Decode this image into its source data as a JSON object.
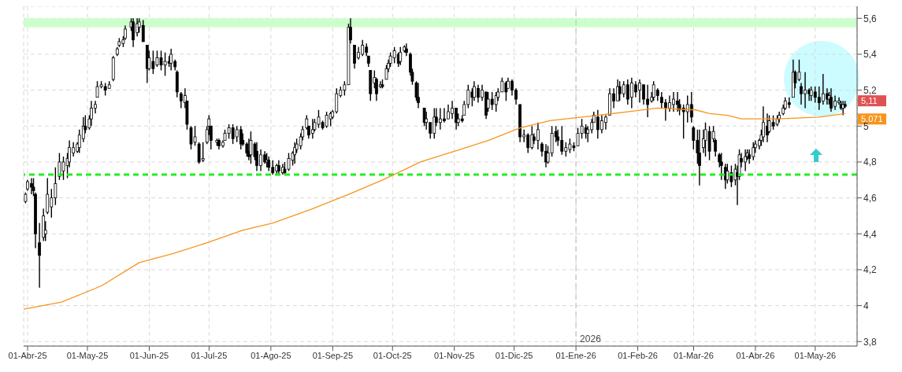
{
  "chart_data": {
    "type": "candlestick",
    "color": "#000000",
    "x": [
      "2025-03-31",
      "2025-04-01",
      "2025-04-03",
      "2025-04-04",
      "2025-04-05",
      "2025-04-07",
      "2025-04-09",
      "2025-04-10",
      "2025-04-11",
      "2025-04-13",
      "2025-04-15",
      "2025-04-17",
      "2025-04-19",
      "2025-04-21",
      "2025-04-22",
      "2025-04-24",
      "2025-04-26",
      "2025-04-27",
      "2025-04-29",
      "2025-04-30",
      "2025-05-02",
      "2025-05-03",
      "2025-05-05",
      "2025-05-06",
      "2025-05-08",
      "2025-05-10",
      "2025-05-12",
      "2025-05-14",
      "2025-05-16",
      "2025-05-17",
      "2025-05-19",
      "2025-05-20",
      "2025-05-23",
      "2025-05-24",
      "2025-05-26",
      "2025-05-27",
      "2025-05-29",
      "2025-05-31",
      "2025-06-01",
      "2025-06-03",
      "2025-06-05",
      "2025-06-07",
      "2025-06-09",
      "2025-06-11",
      "2025-06-12",
      "2025-06-14",
      "2025-06-15",
      "2025-06-17",
      "2025-06-19",
      "2025-06-20",
      "2025-06-22",
      "2025-06-24",
      "2025-06-26",
      "2025-06-28",
      "2025-06-30",
      "2025-07-01",
      "2025-07-02",
      "2025-07-05",
      "2025-07-06",
      "2025-07-08",
      "2025-07-09",
      "2025-07-11",
      "2025-07-13",
      "2025-07-15",
      "2025-07-17",
      "2025-07-18",
      "2025-07-20",
      "2025-07-21",
      "2025-07-22",
      "2025-07-24",
      "2025-07-25",
      "2025-07-27",
      "2025-07-29",
      "2025-07-30",
      "2025-07-31",
      "2025-08-02",
      "2025-08-04",
      "2025-08-05",
      "2025-08-07",
      "2025-08-08",
      "2025-08-10",
      "2025-08-12",
      "2025-08-13",
      "2025-08-14",
      "2025-08-16",
      "2025-08-17",
      "2025-08-19",
      "2025-08-20",
      "2025-08-22",
      "2025-08-23",
      "2025-08-25",
      "2025-08-27",
      "2025-08-29",
      "2025-08-31",
      "2025-09-01",
      "2025-09-03",
      "2025-09-05",
      "2025-09-07",
      "2025-09-09",
      "2025-09-10",
      "2025-09-12",
      "2025-09-14",
      "2025-09-16",
      "2025-09-18",
      "2025-09-19",
      "2025-09-20",
      "2025-09-22",
      "2025-09-23",
      "2025-09-25",
      "2025-09-26",
      "2025-09-28",
      "2025-09-29",
      "2025-09-30",
      "2025-10-02",
      "2025-10-04",
      "2025-10-05",
      "2025-10-07",
      "2025-10-08",
      "2025-10-10",
      "2025-10-11",
      "2025-10-13",
      "2025-10-14",
      "2025-10-17",
      "2025-10-18",
      "2025-10-20",
      "2025-10-22",
      "2025-10-23",
      "2025-10-25",
      "2025-10-27",
      "2025-10-29",
      "2025-10-31",
      "2025-11-02",
      "2025-11-03",
      "2025-11-05",
      "2025-11-06",
      "2025-11-08",
      "2025-11-10",
      "2025-11-11",
      "2025-11-13",
      "2025-11-15",
      "2025-11-17",
      "2025-11-18",
      "2025-11-20",
      "2025-11-22",
      "2025-11-23",
      "2025-11-25",
      "2025-11-27",
      "2025-11-28",
      "2025-11-30",
      "2025-12-02",
      "2025-12-04",
      "2025-12-06",
      "2025-12-08",
      "2025-12-10",
      "2025-12-11",
      "2025-12-13",
      "2025-12-15",
      "2025-12-17",
      "2025-12-18",
      "2025-12-20",
      "2025-12-22",
      "2025-12-23",
      "2025-12-25",
      "2025-12-27",
      "2025-12-29",
      "2025-12-31",
      "2026-01-02",
      "2026-01-04",
      "2026-01-06",
      "2026-01-07",
      "2026-01-09",
      "2026-01-10",
      "2026-01-12",
      "2026-01-14",
      "2026-01-16",
      "2026-01-18",
      "2026-01-20",
      "2026-01-22",
      "2026-01-23",
      "2026-01-25",
      "2026-01-27",
      "2026-01-29",
      "2026-01-31",
      "2026-02-02",
      "2026-02-04",
      "2026-02-06",
      "2026-02-08",
      "2026-02-09",
      "2026-02-11",
      "2026-02-13",
      "2026-02-15",
      "2026-02-17",
      "2026-02-19",
      "2026-02-21",
      "2026-02-22",
      "2026-02-24",
      "2026-02-26",
      "2026-02-28",
      "2026-03-01",
      "2026-03-03",
      "2026-03-04",
      "2026-03-06",
      "2026-03-07",
      "2026-03-09",
      "2026-03-11",
      "2026-03-12",
      "2026-03-14",
      "2026-03-15",
      "2026-03-17",
      "2026-03-18",
      "2026-03-20",
      "2026-03-22",
      "2026-03-23",
      "2026-03-24",
      "2026-03-25",
      "2026-03-27",
      "2026-03-28",
      "2026-03-29",
      "2026-03-31",
      "2026-04-01",
      "2026-04-03",
      "2026-04-04",
      "2026-04-05",
      "2026-04-07",
      "2026-04-08",
      "2026-04-10",
      "2026-04-12",
      "2026-04-13",
      "2026-04-15",
      "2026-04-16",
      "2026-04-18",
      "2026-04-20",
      "2026-04-21",
      "2026-04-23",
      "2026-04-24",
      "2026-04-26",
      "2026-04-28",
      "2026-04-29",
      "2026-05-01",
      "2026-05-03",
      "2026-05-05",
      "2026-05-07",
      "2026-05-08",
      "2026-05-09",
      "2026-05-11",
      "2026-05-13",
      "2026-05-14",
      "2026-05-15",
      "2026-05-16"
    ],
    "ohlc": [
      [
        4.58,
        4.63,
        4.57,
        4.62
      ],
      [
        4.65,
        4.7,
        4.64,
        4.69
      ],
      [
        4.68,
        4.71,
        4.62,
        4.66
      ],
      [
        4.66,
        4.71,
        4.61,
        4.64
      ],
      [
        4.62,
        4.63,
        4.32,
        4.4
      ],
      [
        4.35,
        4.46,
        4.1,
        4.28
      ],
      [
        4.38,
        4.54,
        4.36,
        4.5
      ],
      [
        4.4,
        4.47,
        4.36,
        4.42
      ],
      [
        4.52,
        4.71,
        4.51,
        4.62
      ],
      [
        4.55,
        4.65,
        4.49,
        4.6
      ],
      [
        4.6,
        4.77,
        4.56,
        4.68
      ],
      [
        4.72,
        4.85,
        4.7,
        4.8
      ],
      [
        4.75,
        4.83,
        4.7,
        4.8
      ],
      [
        4.78,
        4.85,
        4.71,
        4.82
      ],
      [
        4.8,
        4.92,
        4.77,
        4.88
      ],
      [
        4.85,
        4.91,
        4.83,
        4.88
      ],
      [
        4.86,
        4.91,
        4.85,
        4.9
      ],
      [
        4.88,
        4.98,
        4.85,
        4.95
      ],
      [
        4.93,
        5.05,
        4.91,
        5.0
      ],
      [
        5.0,
        5.06,
        4.96,
        4.98
      ],
      [
        4.99,
        5.06,
        4.98,
        5.04
      ],
      [
        5.04,
        5.14,
        5.0,
        5.1
      ],
      [
        5.1,
        5.14,
        5.07,
        5.12
      ],
      [
        5.16,
        5.25,
        5.16,
        5.22
      ],
      [
        5.22,
        5.25,
        5.21,
        5.23
      ],
      [
        5.22,
        5.24,
        5.17,
        5.2
      ],
      [
        5.21,
        5.25,
        5.21,
        5.23
      ],
      [
        5.26,
        5.39,
        5.25,
        5.38
      ],
      [
        5.4,
        5.44,
        5.39,
        5.43
      ],
      [
        5.45,
        5.49,
        5.44,
        5.47
      ],
      [
        5.46,
        5.5,
        5.44,
        5.48
      ],
      [
        5.49,
        5.56,
        5.48,
        5.54
      ],
      [
        5.55,
        5.6,
        5.53,
        5.58
      ],
      [
        5.58,
        5.6,
        5.44,
        5.48
      ],
      [
        5.52,
        5.6,
        5.5,
        5.57
      ],
      [
        5.55,
        5.6,
        5.52,
        5.58
      ],
      [
        5.56,
        5.59,
        5.47,
        5.47
      ],
      [
        5.45,
        5.45,
        5.24,
        5.32
      ],
      [
        5.32,
        5.42,
        5.31,
        5.38
      ],
      [
        5.36,
        5.42,
        5.29,
        5.32
      ],
      [
        5.34,
        5.42,
        5.33,
        5.38
      ],
      [
        5.38,
        5.42,
        5.31,
        5.34
      ],
      [
        5.34,
        5.41,
        5.28,
        5.36
      ],
      [
        5.36,
        5.39,
        5.33,
        5.35
      ],
      [
        5.35,
        5.43,
        5.31,
        5.4
      ],
      [
        5.36,
        5.37,
        5.31,
        5.33
      ],
      [
        5.3,
        5.31,
        5.16,
        5.19
      ],
      [
        5.18,
        5.19,
        5.1,
        5.14
      ],
      [
        5.13,
        5.21,
        5.1,
        5.17
      ],
      [
        5.14,
        5.14,
        4.98,
        5.01
      ],
      [
        4.99,
        5.0,
        4.87,
        4.9
      ],
      [
        4.91,
        5.0,
        4.89,
        4.94
      ],
      [
        4.9,
        4.91,
        4.79,
        4.8
      ],
      [
        4.81,
        4.91,
        4.8,
        4.82
      ],
      [
        4.91,
        5.0,
        4.9,
        4.98
      ],
      [
        5.0,
        5.06,
        4.95,
        5.04
      ],
      [
        5.0,
        5.0,
        4.87,
        4.92
      ],
      [
        4.91,
        4.93,
        4.89,
        4.92
      ],
      [
        4.92,
        4.93,
        4.87,
        4.89
      ],
      [
        4.89,
        4.92,
        4.88,
        4.91
      ],
      [
        4.92,
        4.98,
        4.92,
        4.96
      ],
      [
        4.96,
        5.01,
        4.93,
        4.99
      ],
      [
        4.99,
        5.01,
        4.9,
        4.93
      ],
      [
        4.94,
        5.0,
        4.91,
        4.98
      ],
      [
        4.98,
        5.0,
        4.87,
        4.9
      ],
      [
        4.92,
        4.96,
        4.89,
        4.9
      ],
      [
        4.9,
        4.91,
        4.83,
        4.85
      ],
      [
        4.86,
        4.93,
        4.81,
        4.83
      ],
      [
        4.84,
        4.97,
        4.79,
        4.92
      ],
      [
        4.9,
        4.91,
        4.81,
        4.83
      ],
      [
        4.86,
        4.91,
        4.75,
        4.78
      ],
      [
        4.78,
        4.87,
        4.75,
        4.84
      ],
      [
        4.84,
        4.86,
        4.79,
        4.8
      ],
      [
        4.8,
        4.85,
        4.77,
        4.81
      ],
      [
        4.81,
        4.83,
        4.75,
        4.77
      ],
      [
        4.77,
        4.81,
        4.73,
        4.74
      ],
      [
        4.75,
        4.79,
        4.73,
        4.78
      ],
      [
        4.78,
        4.81,
        4.73,
        4.75
      ],
      [
        4.74,
        4.79,
        4.73,
        4.77
      ],
      [
        4.76,
        4.8,
        4.73,
        4.74
      ],
      [
        4.76,
        4.85,
        4.75,
        4.82
      ],
      [
        4.81,
        4.86,
        4.78,
        4.85
      ],
      [
        4.84,
        4.91,
        4.79,
        4.88
      ],
      [
        4.87,
        4.93,
        4.85,
        4.9
      ],
      [
        4.89,
        4.96,
        4.87,
        4.94
      ],
      [
        4.94,
        5.0,
        4.92,
        4.98
      ],
      [
        4.99,
        5.06,
        4.98,
        5.04
      ],
      [
        5.0,
        5.0,
        4.93,
        4.95
      ],
      [
        4.96,
        5.04,
        4.93,
        4.98
      ],
      [
        4.98,
        5.04,
        4.97,
        5.02
      ],
      [
        5.01,
        5.09,
        4.99,
        5.05
      ],
      [
        5.02,
        5.03,
        4.98,
        4.99
      ],
      [
        5.0,
        5.08,
        4.99,
        5.06
      ],
      [
        5.04,
        5.08,
        5.0,
        5.07
      ],
      [
        5.05,
        5.09,
        5.04,
        5.08
      ],
      [
        5.08,
        5.21,
        5.07,
        5.18
      ],
      [
        5.17,
        5.22,
        5.16,
        5.2
      ],
      [
        5.2,
        5.25,
        5.17,
        5.23
      ],
      [
        5.23,
        5.57,
        5.23,
        5.55
      ],
      [
        5.55,
        5.6,
        5.46,
        5.48
      ],
      [
        5.45,
        5.45,
        5.32,
        5.35
      ],
      [
        5.38,
        5.44,
        5.37,
        5.41
      ],
      [
        5.4,
        5.48,
        5.39,
        5.45
      ],
      [
        5.44,
        5.46,
        5.39,
        5.41
      ],
      [
        5.39,
        5.39,
        5.33,
        5.35
      ],
      [
        5.31,
        5.31,
        5.14,
        5.18
      ],
      [
        5.24,
        5.31,
        5.21,
        5.27
      ],
      [
        5.26,
        5.27,
        5.14,
        5.18
      ],
      [
        5.22,
        5.25,
        5.21,
        5.23
      ],
      [
        5.23,
        5.26,
        5.21,
        5.22
      ],
      [
        5.26,
        5.34,
        5.26,
        5.32
      ],
      [
        5.32,
        5.37,
        5.3,
        5.35
      ],
      [
        5.35,
        5.41,
        5.33,
        5.39
      ],
      [
        5.38,
        5.44,
        5.35,
        5.42
      ],
      [
        5.4,
        5.41,
        5.33,
        5.35
      ],
      [
        5.36,
        5.44,
        5.34,
        5.41
      ],
      [
        5.42,
        5.45,
        5.41,
        5.44
      ],
      [
        5.43,
        5.46,
        5.39,
        5.41
      ],
      [
        5.4,
        5.41,
        5.28,
        5.3
      ],
      [
        5.3,
        5.32,
        5.23,
        5.25
      ],
      [
        5.24,
        5.25,
        5.14,
        5.16
      ],
      [
        5.16,
        5.24,
        5.1,
        5.13
      ],
      [
        5.1,
        5.1,
        5.0,
        5.02
      ],
      [
        5.02,
        5.08,
        4.98,
        5.04
      ],
      [
        5.02,
        5.02,
        4.93,
        4.96
      ],
      [
        4.96,
        5.1,
        4.93,
        5.05
      ],
      [
        5.05,
        5.1,
        5.0,
        5.02
      ],
      [
        5.02,
        5.1,
        4.98,
        5.04
      ],
      [
        5.04,
        5.1,
        5.02,
        5.03
      ],
      [
        5.04,
        5.12,
        5.04,
        5.08
      ],
      [
        5.07,
        5.14,
        5.04,
        5.1
      ],
      [
        5.1,
        5.1,
        4.98,
        5.02
      ],
      [
        5.02,
        5.07,
        5.0,
        5.04
      ],
      [
        5.04,
        5.06,
        5.02,
        5.03
      ],
      [
        5.06,
        5.14,
        5.06,
        5.12
      ],
      [
        5.12,
        5.23,
        5.1,
        5.2
      ],
      [
        5.19,
        5.21,
        5.11,
        5.16
      ],
      [
        5.16,
        5.25,
        5.14,
        5.22
      ],
      [
        5.21,
        5.23,
        5.13,
        5.16
      ],
      [
        5.16,
        5.23,
        5.14,
        5.2
      ],
      [
        5.19,
        5.19,
        5.04,
        5.06
      ],
      [
        5.1,
        5.19,
        5.08,
        5.15
      ],
      [
        5.15,
        5.19,
        5.09,
        5.12
      ],
      [
        5.12,
        5.19,
        5.08,
        5.17
      ],
      [
        5.16,
        5.21,
        5.14,
        5.19
      ],
      [
        5.19,
        5.27,
        5.19,
        5.25
      ],
      [
        5.24,
        5.25,
        5.14,
        5.19
      ],
      [
        5.21,
        5.27,
        5.21,
        5.25
      ],
      [
        5.25,
        5.26,
        5.17,
        5.2
      ],
      [
        5.2,
        5.21,
        5.12,
        5.15
      ],
      [
        5.12,
        5.12,
        4.91,
        4.94
      ],
      [
        4.94,
        4.98,
        4.91,
        4.95
      ],
      [
        4.95,
        4.96,
        4.85,
        4.88
      ],
      [
        4.88,
        5.0,
        4.87,
        4.95
      ],
      [
        4.94,
        4.96,
        4.9,
        4.92
      ],
      [
        4.92,
        5.02,
        4.87,
        4.98
      ],
      [
        4.9,
        4.91,
        4.83,
        4.86
      ],
      [
        4.86,
        4.9,
        4.77,
        4.8
      ],
      [
        4.8,
        4.89,
        4.79,
        4.85
      ],
      [
        4.85,
        5.0,
        4.83,
        4.96
      ],
      [
        4.97,
        5.0,
        4.91,
        4.94
      ],
      [
        4.94,
        4.98,
        4.89,
        4.92
      ],
      [
        4.92,
        5.0,
        4.84,
        4.86
      ],
      [
        4.86,
        4.91,
        4.83,
        4.88
      ],
      [
        4.87,
        4.93,
        4.85,
        4.9
      ],
      [
        4.89,
        4.91,
        4.86,
        4.88
      ],
      [
        4.89,
        4.99,
        4.89,
        4.96
      ],
      [
        4.96,
        5.04,
        4.93,
        5.0
      ],
      [
        4.99,
        5.01,
        4.93,
        4.96
      ],
      [
        4.96,
        5.0,
        4.91,
        4.98
      ],
      [
        4.98,
        5.04,
        4.96,
        5.02
      ],
      [
        5.02,
        5.08,
        5.02,
        5.06
      ],
      [
        5.05,
        5.09,
        4.93,
        4.98
      ],
      [
        4.98,
        5.06,
        4.96,
        5.03
      ],
      [
        5.02,
        5.06,
        4.98,
        5.05
      ],
      [
        5.06,
        5.21,
        5.06,
        5.18
      ],
      [
        5.18,
        5.21,
        5.1,
        5.14
      ],
      [
        5.14,
        5.26,
        5.14,
        5.22
      ],
      [
        5.22,
        5.25,
        5.14,
        5.18
      ],
      [
        5.18,
        5.25,
        5.16,
        5.23
      ],
      [
        5.23,
        5.26,
        5.12,
        5.15
      ],
      [
        5.16,
        5.27,
        5.1,
        5.24
      ],
      [
        5.23,
        5.25,
        5.16,
        5.19
      ],
      [
        5.2,
        5.26,
        5.13,
        5.24
      ],
      [
        5.23,
        5.23,
        5.12,
        5.15
      ],
      [
        5.15,
        5.23,
        5.05,
        5.12
      ],
      [
        5.14,
        5.19,
        5.13,
        5.16
      ],
      [
        5.16,
        5.25,
        5.14,
        5.23
      ],
      [
        5.2,
        5.21,
        5.14,
        5.17
      ],
      [
        5.16,
        5.19,
        5.1,
        5.13
      ],
      [
        5.13,
        5.15,
        5.03,
        5.1
      ],
      [
        5.1,
        5.17,
        5.08,
        5.13
      ],
      [
        5.12,
        5.19,
        5.08,
        5.15
      ],
      [
        5.14,
        5.19,
        5.08,
        5.12
      ],
      [
        5.12,
        5.15,
        5.06,
        5.09
      ],
      [
        5.1,
        5.12,
        4.93,
        5.08
      ],
      [
        5.08,
        5.17,
        5.02,
        5.12
      ],
      [
        5.12,
        5.19,
        5.02,
        5.05
      ],
      [
        4.99,
        5.0,
        4.87,
        4.92
      ],
      [
        4.92,
        4.98,
        4.79,
        4.85
      ],
      [
        4.85,
        4.98,
        4.67,
        4.78
      ],
      [
        4.88,
        4.98,
        4.85,
        4.93
      ],
      [
        4.92,
        5.02,
        4.83,
        4.98
      ],
      [
        4.97,
        5.0,
        4.81,
        4.86
      ],
      [
        4.93,
        5.0,
        4.91,
        4.97
      ],
      [
        4.92,
        4.93,
        4.83,
        4.86
      ],
      [
        4.84,
        4.85,
        4.77,
        4.8
      ],
      [
        4.8,
        4.85,
        4.7,
        4.78
      ],
      [
        4.77,
        4.79,
        4.65,
        4.7
      ],
      [
        4.7,
        4.79,
        4.68,
        4.75
      ],
      [
        4.74,
        4.78,
        4.66,
        4.69
      ],
      [
        4.7,
        4.79,
        4.67,
        4.76
      ],
      [
        4.74,
        4.78,
        4.56,
        4.72
      ],
      [
        4.72,
        4.87,
        4.7,
        4.84
      ],
      [
        4.82,
        4.85,
        4.77,
        4.8
      ],
      [
        4.8,
        4.87,
        4.75,
        4.83
      ],
      [
        4.83,
        4.87,
        4.81,
        4.85
      ],
      [
        4.84,
        4.87,
        4.79,
        4.82
      ],
      [
        4.83,
        4.91,
        4.81,
        4.88
      ],
      [
        4.88,
        4.92,
        4.85,
        4.9
      ],
      [
        4.89,
        4.93,
        4.87,
        4.92
      ],
      [
        4.92,
        4.98,
        4.89,
        4.95
      ],
      [
        4.94,
        5.11,
        4.91,
        5.02
      ],
      [
        5.0,
        5.07,
        4.91,
        4.95
      ],
      [
        4.97,
        5.06,
        4.96,
        5.03
      ],
      [
        5.02,
        5.06,
        4.98,
        5.0
      ],
      [
        5.01,
        5.06,
        5.0,
        5.04
      ],
      [
        5.04,
        5.08,
        5.02,
        5.06
      ],
      [
        5.07,
        5.12,
        5.06,
        5.1
      ],
      [
        5.1,
        5.16,
        5.09,
        5.14
      ],
      [
        5.13,
        5.16,
        5.1,
        5.12
      ],
      [
        5.16,
        5.37,
        5.16,
        5.3
      ],
      [
        5.3,
        5.31,
        5.21,
        5.24
      ],
      [
        5.26,
        5.37,
        5.25,
        5.3
      ],
      [
        5.22,
        5.24,
        5.12,
        5.18
      ],
      [
        5.18,
        5.3,
        5.1,
        5.2
      ],
      [
        5.2,
        5.21,
        5.14,
        5.18
      ],
      [
        5.17,
        5.22,
        5.14,
        5.2
      ],
      [
        5.19,
        5.22,
        5.13,
        5.16
      ],
      [
        5.16,
        5.22,
        5.09,
        5.13
      ],
      [
        5.14,
        5.29,
        5.12,
        5.18
      ],
      [
        5.18,
        5.21,
        5.12,
        5.15
      ],
      [
        5.15,
        5.19,
        5.12,
        5.17
      ],
      [
        5.16,
        5.21,
        5.08,
        5.1
      ],
      [
        5.11,
        5.17,
        5.09,
        5.14
      ],
      [
        5.13,
        5.16,
        5.12,
        5.14
      ],
      [
        5.12,
        5.14,
        5.09,
        5.1
      ],
      [
        5.1,
        5.14,
        5.06,
        5.12
      ],
      [
        5.12,
        5.14,
        5.1,
        5.11
      ]
    ],
    "series": [
      {
        "type": "line",
        "color": "#f7941d",
        "x": [
          "2025-03-30",
          "2025-04-18",
          "2025-05-08",
          "2025-05-27",
          "2025-06-13",
          "2025-06-30",
          "2025-07-18",
          "2025-08-02",
          "2025-08-22",
          "2025-09-09",
          "2025-09-26",
          "2025-10-15",
          "2025-11-01",
          "2025-11-18",
          "2025-12-04",
          "2025-12-19",
          "2026-01-12",
          "2026-01-27",
          "2026-02-11",
          "2026-03-02",
          "2026-03-09",
          "2026-03-18",
          "2026-03-25",
          "2026-04-02",
          "2026-04-12",
          "2026-05-03",
          "2026-05-16"
        ],
        "values": [
          3.98,
          4.02,
          4.11,
          4.24,
          4.29,
          4.35,
          4.42,
          4.46,
          4.54,
          4.62,
          4.7,
          4.8,
          4.86,
          4.92,
          4.99,
          5.03,
          5.06,
          5.08,
          5.1,
          5.09,
          5.07,
          5.06,
          5.04,
          5.04,
          5.04,
          5.05,
          5.07
        ]
      }
    ],
    "xlim": [
      "2025-03-30",
      "2026-05-22"
    ],
    "xticks": [
      {
        "value": "2025-04-01",
        "label": "01-Abr-25"
      },
      {
        "value": "2025-05-01",
        "label": "01-May-25"
      },
      {
        "value": "2025-06-01",
        "label": "01-Jun-25"
      },
      {
        "value": "2025-07-01",
        "label": "01-Jul-25"
      },
      {
        "value": "2025-08-01",
        "label": "01-Ago-25"
      },
      {
        "value": "2025-09-01",
        "label": "01-Sep-25"
      },
      {
        "value": "2025-10-01",
        "label": "01-Oct-25"
      },
      {
        "value": "2025-11-01",
        "label": "01-Nov-25"
      },
      {
        "value": "2025-12-01",
        "label": "01-Dic-25"
      },
      {
        "value": "2026-01-01",
        "label": "01-Ene-26"
      },
      {
        "value": "2026-02-01",
        "label": "01-Feb-26"
      },
      {
        "value": "2026-03-01",
        "label": "01-Mar-26"
      },
      {
        "value": "2026-04-01",
        "label": "01-Abr-26"
      },
      {
        "value": "2026-05-01",
        "label": "01-May-26"
      }
    ],
    "ylim": [
      3.775,
      5.667
    ],
    "yticks": [
      {
        "value": 3.8,
        "label": "3,8"
      },
      4,
      {
        "value": 4.2,
        "label": "4,2"
      },
      {
        "value": 4.4,
        "label": "4,4"
      },
      {
        "value": 4.6,
        "label": "4,6"
      },
      {
        "value": 4.8,
        "label": "4,8"
      },
      5,
      {
        "value": 5.2,
        "label": "5,2"
      },
      {
        "value": 5.4,
        "label": "5,4"
      },
      {
        "value": 5.6,
        "label": "5,6"
      }
    ],
    "grid": true,
    "ref_lines": [
      {
        "axis": "y",
        "value": 4.73,
        "color": "#22ee22",
        "line_style": "dashed"
      },
      {
        "axis": "x",
        "value": "2026-01-01",
        "label": "2026",
        "color": "#bbbbbb",
        "line_style": "dashed"
      }
    ],
    "bands": [
      {
        "axis": "y",
        "from": 5.55,
        "to": 5.6,
        "color": "#ccffcc"
      }
    ],
    "annotations": [
      "5,11",
      "5,071"
    ]
  }
}
